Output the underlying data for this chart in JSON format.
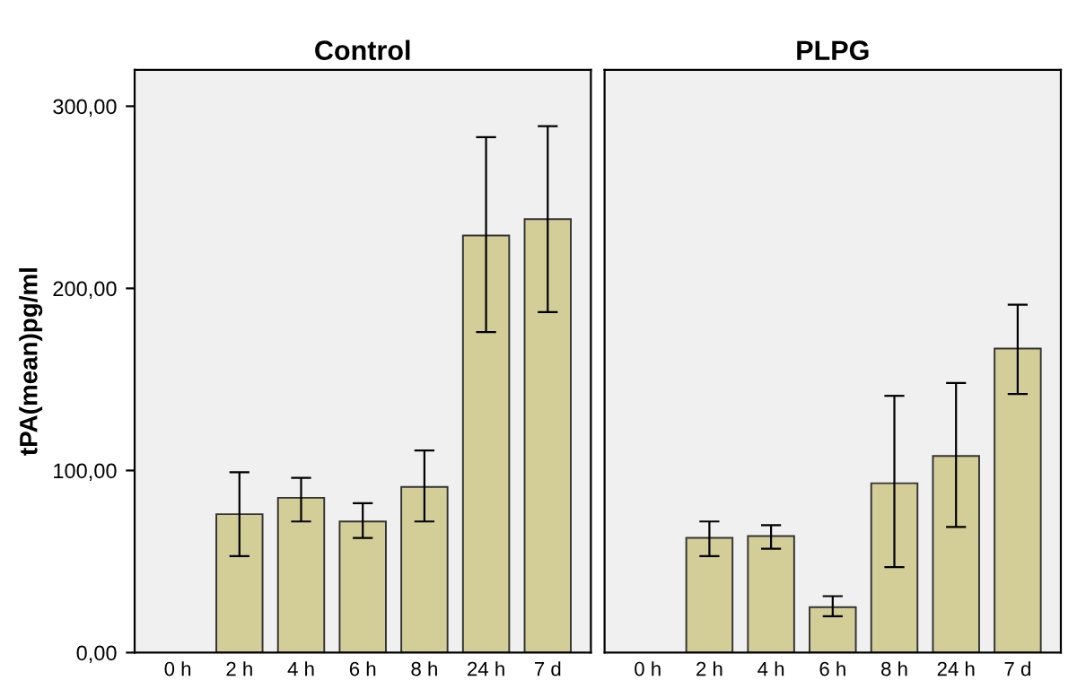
{
  "chart_data": [
    {
      "type": "bar",
      "title": "Control",
      "ylabel": "tPA(mean)pg/ml",
      "categories": [
        "0 h",
        "2 h",
        "4 h",
        "6 h",
        "8 h",
        "24 h",
        "7 d"
      ],
      "color": "#d3ce97",
      "values": [
        null,
        76,
        85,
        72,
        91,
        229,
        238
      ],
      "errors": [
        null,
        [
          53,
          99
        ],
        [
          72,
          96
        ],
        [
          63,
          82
        ],
        [
          72,
          111
        ],
        [
          176,
          283
        ],
        [
          187,
          289
        ]
      ],
      "ylim": [
        0,
        320
      ],
      "yticks": [
        {
          "value": 0,
          "label": "0,00"
        },
        {
          "value": 100,
          "label": "100,00"
        },
        {
          "value": 200,
          "label": "200,00"
        },
        {
          "value": 300,
          "label": "300,00"
        }
      ],
      "grid": false
    },
    {
      "type": "bar",
      "title": "PLPG",
      "categories": [
        "0 h",
        "2 h",
        "4 h",
        "6 h",
        "8 h",
        "24 h",
        "7 d"
      ],
      "color": "#d3ce97",
      "values": [
        null,
        63,
        64,
        25,
        93,
        108,
        167
      ],
      "errors": [
        null,
        [
          53,
          72
        ],
        [
          57,
          70
        ],
        [
          20,
          31
        ],
        [
          47,
          141
        ],
        [
          69,
          148
        ],
        [
          142,
          191
        ]
      ],
      "ylim": [
        0,
        320
      ],
      "grid": false,
      "tick_labels": "x"
    }
  ]
}
